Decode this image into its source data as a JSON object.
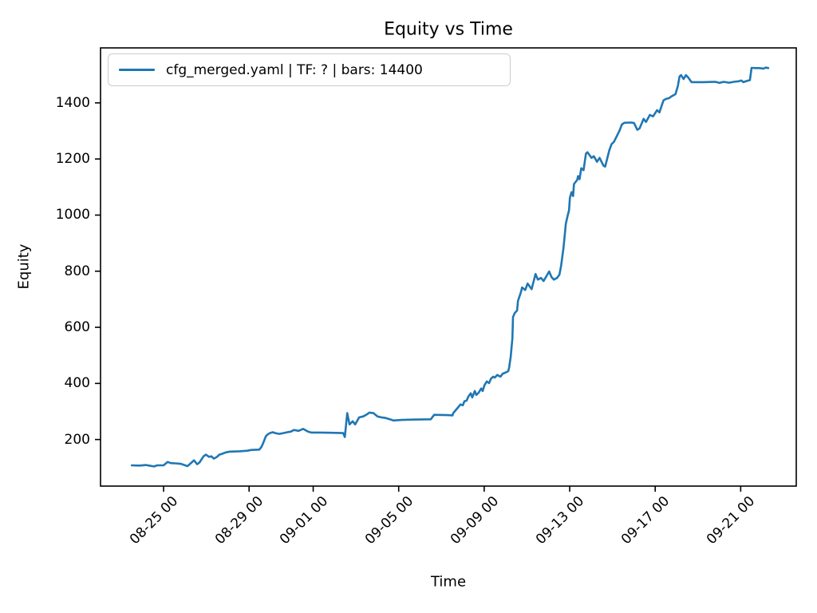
{
  "figure": {
    "title": "Equity vs Time",
    "xlabel": "Time",
    "ylabel": "Equity",
    "legend": {
      "label": "cfg_merged.yaml | TF: ? | bars: 14400"
    }
  },
  "style": {
    "line_color": "#1f77b4",
    "text_color": "#000000",
    "spine_color": "#000000",
    "legend_border_color": "#cccccc",
    "background": "#ffffff"
  },
  "chart_data": {
    "type": "line",
    "title": "Equity vs Time",
    "xlabel": "Time",
    "ylabel": "Equity",
    "grid": false,
    "legend_position": "upper left",
    "x_unit": "days relative to 08-25 00:00",
    "xlim": [
      -2.95,
      29.6
    ],
    "ylim": [
      34,
      1596
    ],
    "x_ticks": [
      {
        "value": 0,
        "label": "08-25 00"
      },
      {
        "value": 4,
        "label": "08-29 00"
      },
      {
        "value": 7,
        "label": "09-01 00"
      },
      {
        "value": 11,
        "label": "09-05 00"
      },
      {
        "value": 15,
        "label": "09-09 00"
      },
      {
        "value": 19,
        "label": "09-13 00"
      },
      {
        "value": 23,
        "label": "09-17 00"
      },
      {
        "value": 27,
        "label": "09-21 00"
      }
    ],
    "y_ticks": [
      {
        "value": 200,
        "label": "200"
      },
      {
        "value": 400,
        "label": "400"
      },
      {
        "value": 600,
        "label": "600"
      },
      {
        "value": 800,
        "label": "800"
      },
      {
        "value": 1000,
        "label": "1000"
      },
      {
        "value": 1200,
        "label": "1200"
      },
      {
        "value": 1400,
        "label": "1400"
      }
    ],
    "series": [
      {
        "name": "cfg_merged.yaml | TF: ? | bars: 14400",
        "color": "#1f77b4",
        "linewidth": 2.6,
        "points": [
          [
            -1.49,
            108
          ],
          [
            -1.12,
            107
          ],
          [
            -0.82,
            109
          ],
          [
            -0.6,
            106
          ],
          [
            -0.45,
            104
          ],
          [
            -0.3,
            108
          ],
          [
            0.0,
            108
          ],
          [
            0.19,
            120
          ],
          [
            0.34,
            116
          ],
          [
            0.56,
            115
          ],
          [
            0.82,
            113
          ],
          [
            0.97,
            109
          ],
          [
            1.12,
            105
          ],
          [
            1.31,
            118
          ],
          [
            1.42,
            126
          ],
          [
            1.57,
            112
          ],
          [
            1.68,
            118
          ],
          [
            1.87,
            140
          ],
          [
            1.98,
            146
          ],
          [
            2.13,
            138
          ],
          [
            2.24,
            140
          ],
          [
            2.35,
            132
          ],
          [
            2.5,
            138
          ],
          [
            2.61,
            146
          ],
          [
            2.73,
            149
          ],
          [
            2.91,
            154
          ],
          [
            3.1,
            157
          ],
          [
            3.55,
            158
          ],
          [
            3.92,
            160
          ],
          [
            4.11,
            163
          ],
          [
            4.48,
            164
          ],
          [
            4.59,
            175
          ],
          [
            4.67,
            189
          ],
          [
            4.74,
            203
          ],
          [
            4.78,
            211
          ],
          [
            4.85,
            217
          ],
          [
            4.97,
            223
          ],
          [
            5.11,
            226
          ],
          [
            5.23,
            223
          ],
          [
            5.41,
            220
          ],
          [
            5.6,
            223
          ],
          [
            5.79,
            226
          ],
          [
            5.95,
            228
          ],
          [
            6.1,
            234
          ],
          [
            6.32,
            231
          ],
          [
            6.53,
            238
          ],
          [
            6.76,
            228
          ],
          [
            6.91,
            225
          ],
          [
            7.28,
            225
          ],
          [
            7.84,
            224
          ],
          [
            8.4,
            223
          ],
          [
            8.48,
            209
          ],
          [
            8.59,
            294
          ],
          [
            8.7,
            254
          ],
          [
            8.85,
            265
          ],
          [
            8.96,
            254
          ],
          [
            9.15,
            279
          ],
          [
            9.33,
            282
          ],
          [
            9.48,
            288
          ],
          [
            9.63,
            296
          ],
          [
            9.82,
            294
          ],
          [
            10.01,
            282
          ],
          [
            10.19,
            279
          ],
          [
            10.38,
            277
          ],
          [
            10.64,
            271
          ],
          [
            10.75,
            268
          ],
          [
            11.16,
            270
          ],
          [
            11.64,
            271
          ],
          [
            12.5,
            272
          ],
          [
            12.66,
            288
          ],
          [
            13.29,
            287
          ],
          [
            13.52,
            286
          ],
          [
            13.55,
            294
          ],
          [
            13.74,
            311
          ],
          [
            13.89,
            325
          ],
          [
            14.0,
            322
          ],
          [
            14.07,
            336
          ],
          [
            14.18,
            339
          ],
          [
            14.26,
            353
          ],
          [
            14.37,
            365
          ],
          [
            14.44,
            350
          ],
          [
            14.56,
            373
          ],
          [
            14.63,
            359
          ],
          [
            14.74,
            367
          ],
          [
            14.86,
            382
          ],
          [
            14.93,
            373
          ],
          [
            15.01,
            393
          ],
          [
            15.12,
            407
          ],
          [
            15.23,
            401
          ],
          [
            15.31,
            416
          ],
          [
            15.42,
            424
          ],
          [
            15.5,
            421
          ],
          [
            15.61,
            430
          ],
          [
            15.76,
            424
          ],
          [
            15.87,
            435
          ],
          [
            15.98,
            438
          ],
          [
            16.13,
            444
          ],
          [
            16.17,
            458
          ],
          [
            16.24,
            495
          ],
          [
            16.32,
            560
          ],
          [
            16.35,
            637
          ],
          [
            16.43,
            651
          ],
          [
            16.54,
            660
          ],
          [
            16.58,
            694
          ],
          [
            16.65,
            710
          ],
          [
            16.73,
            728
          ],
          [
            16.77,
            742
          ],
          [
            16.92,
            733
          ],
          [
            17.03,
            756
          ],
          [
            17.22,
            736
          ],
          [
            17.4,
            790
          ],
          [
            17.51,
            770
          ],
          [
            17.66,
            776
          ],
          [
            17.78,
            765
          ],
          [
            18.04,
            799
          ],
          [
            18.15,
            779
          ],
          [
            18.26,
            770
          ],
          [
            18.41,
            776
          ],
          [
            18.52,
            788
          ],
          [
            18.6,
            820
          ],
          [
            18.71,
            884
          ],
          [
            18.82,
            969
          ],
          [
            18.9,
            997
          ],
          [
            18.97,
            1017
          ],
          [
            19.01,
            1062
          ],
          [
            19.09,
            1082
          ],
          [
            19.16,
            1068
          ],
          [
            19.2,
            1111
          ],
          [
            19.35,
            1125
          ],
          [
            19.39,
            1139
          ],
          [
            19.46,
            1128
          ],
          [
            19.54,
            1167
          ],
          [
            19.65,
            1160
          ],
          [
            19.76,
            1219
          ],
          [
            19.83,
            1224
          ],
          [
            20.02,
            1204
          ],
          [
            20.13,
            1210
          ],
          [
            20.28,
            1190
          ],
          [
            20.4,
            1204
          ],
          [
            20.58,
            1176
          ],
          [
            20.66,
            1173
          ],
          [
            20.85,
            1230
          ],
          [
            20.96,
            1253
          ],
          [
            21.07,
            1261
          ],
          [
            21.33,
            1301
          ],
          [
            21.44,
            1323
          ],
          [
            21.56,
            1329
          ],
          [
            21.89,
            1330
          ],
          [
            22.01,
            1328
          ],
          [
            22.16,
            1304
          ],
          [
            22.27,
            1309
          ],
          [
            22.46,
            1343
          ],
          [
            22.57,
            1332
          ],
          [
            22.75,
            1357
          ],
          [
            22.9,
            1352
          ],
          [
            23.09,
            1374
          ],
          [
            23.2,
            1366
          ],
          [
            23.39,
            1409
          ],
          [
            23.5,
            1414
          ],
          [
            23.65,
            1417
          ],
          [
            23.76,
            1423
          ],
          [
            23.95,
            1431
          ],
          [
            24.06,
            1460
          ],
          [
            24.14,
            1494
          ],
          [
            24.21,
            1499
          ],
          [
            24.33,
            1485
          ],
          [
            24.44,
            1499
          ],
          [
            24.55,
            1490
          ],
          [
            24.7,
            1474
          ],
          [
            25.26,
            1474
          ],
          [
            25.82,
            1475
          ],
          [
            26.01,
            1471
          ],
          [
            26.2,
            1475
          ],
          [
            26.46,
            1472
          ],
          [
            26.68,
            1475
          ],
          [
            26.91,
            1477
          ],
          [
            27.02,
            1480
          ],
          [
            27.13,
            1474
          ],
          [
            27.28,
            1478
          ],
          [
            27.43,
            1481
          ],
          [
            27.51,
            1525
          ],
          [
            27.69,
            1524
          ],
          [
            27.88,
            1524
          ],
          [
            28.07,
            1522
          ],
          [
            28.18,
            1526
          ],
          [
            28.29,
            1524
          ]
        ]
      }
    ]
  }
}
